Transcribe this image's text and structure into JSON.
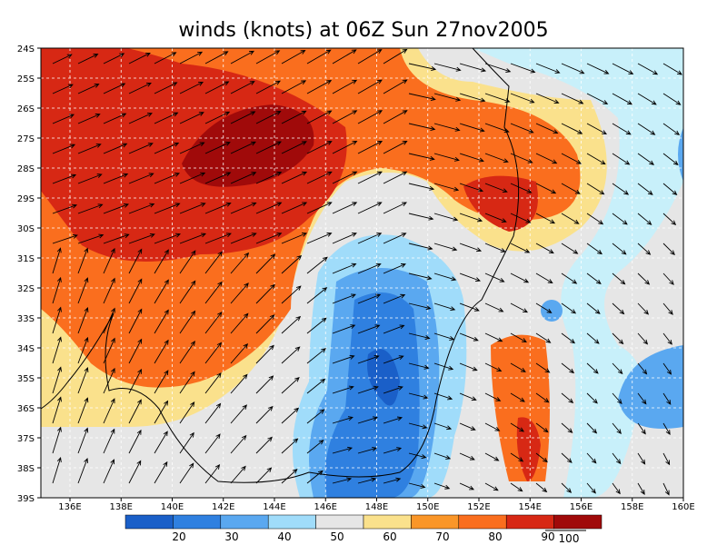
{
  "title": "winds (knots) at 06Z Sun 27nov2005",
  "lat_labels": [
    "24S",
    "25S",
    "26S",
    "27S",
    "28S",
    "29S",
    "30S",
    "31S",
    "32S",
    "33S",
    "34S",
    "35S",
    "36S",
    "37S",
    "38S",
    "39S"
  ],
  "lon_labels": [
    "136E",
    "138E",
    "140E",
    "142E",
    "144E",
    "146E",
    "148E",
    "150E",
    "152E",
    "154E",
    "156E",
    "158E",
    "160E"
  ],
  "colorbar_labels": [
    "20",
    "30",
    "40",
    "50",
    "60",
    "70",
    "80",
    "90"
  ],
  "reference_vector_label": "100"
}
